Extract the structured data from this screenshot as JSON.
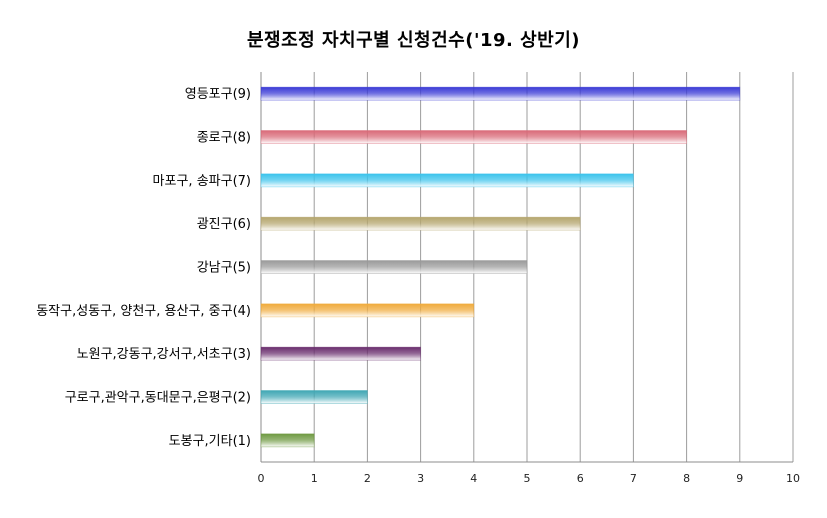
{
  "chart_data": {
    "type": "bar",
    "orientation": "horizontal",
    "title": "분쟁조정 자치구별 신청건수('19. 상반기)",
    "categories": [
      "영등포구(9)",
      "종로구(8)",
      "마포구, 송파구(7)",
      "광진구(6)",
      "강남구(5)",
      "동작구,성동구, 양천구, 용산구, 중구(4)",
      "노원구,강동구,강서구,서초구(3)",
      "구로구,관악구,동대문구,은평구(2)",
      "도봉구,기타(1)"
    ],
    "values": [
      9,
      8,
      7,
      6,
      5,
      4,
      3,
      2,
      1
    ],
    "colors": [
      "#3b3bd6",
      "#d96a78",
      "#3bc4ec",
      "#b5a66e",
      "#9a9a9a",
      "#f0ab3c",
      "#6a2e6e",
      "#3fa7b4",
      "#6f9a42"
    ],
    "xlim": [
      0,
      10
    ],
    "xticks": [
      0,
      1,
      2,
      3,
      4,
      5,
      6,
      7,
      8,
      9,
      10
    ],
    "grid": true,
    "legend": "none",
    "xlabel": "",
    "ylabel": ""
  }
}
